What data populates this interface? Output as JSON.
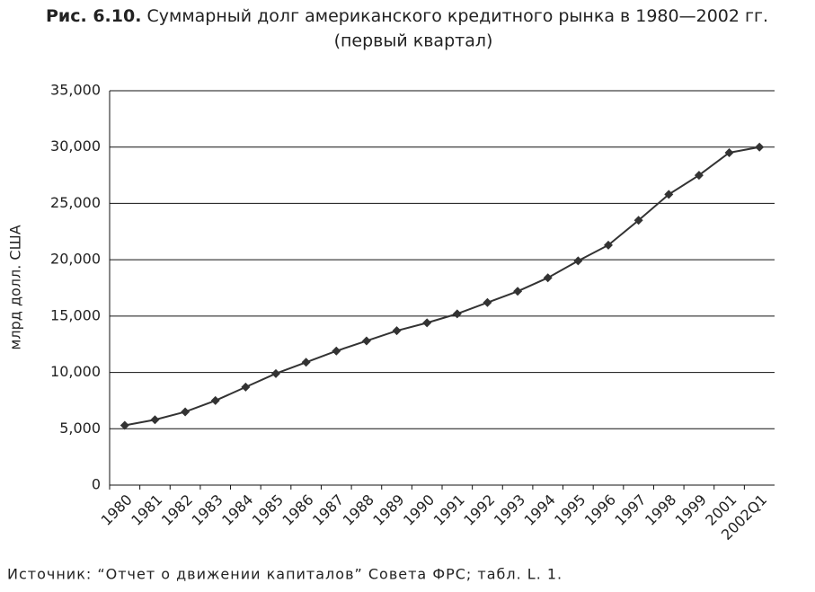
{
  "chart_data": {
    "type": "line",
    "figure_label": "Рис. 6.10.",
    "title": "Суммарный долг американского кредитного рынка в 1980—2002 гг.",
    "subtitle": "(первый квартал)",
    "ylabel": "млрд долл. США",
    "source": "Источник: “Отчет о движении капиталов” Совета ФРС; табл. L. 1.",
    "categories": [
      "1980",
      "1981",
      "1982",
      "1983",
      "1984",
      "1985",
      "1986",
      "1987",
      "1988",
      "1989",
      "1990",
      "1991",
      "1992",
      "1993",
      "1994",
      "1995",
      "1996",
      "1997",
      "1998",
      "1999",
      "2001",
      "2002Q1"
    ],
    "series": [
      {
        "name": "Суммарный долг",
        "color": "#333333",
        "values": [
          5300,
          5800,
          6500,
          7500,
          8700,
          9900,
          10900,
          11900,
          12800,
          13700,
          14400,
          15200,
          16200,
          17200,
          18400,
          19900,
          21300,
          23500,
          25800,
          27500,
          29500,
          30000
        ]
      }
    ],
    "ylim": [
      0,
      35000
    ],
    "yticks": [
      0,
      {
        "value": 5000,
        "label": "5,000"
      },
      {
        "value": 10000,
        "label": "10,000"
      },
      {
        "value": 15000,
        "label": "15,000"
      },
      {
        "value": 20000,
        "label": "20,000"
      },
      {
        "value": 25000,
        "label": "25,000"
      },
      {
        "value": 30000,
        "label": "30,000"
      },
      {
        "value": 35000,
        "label": "35,000"
      }
    ],
    "grid": true
  }
}
